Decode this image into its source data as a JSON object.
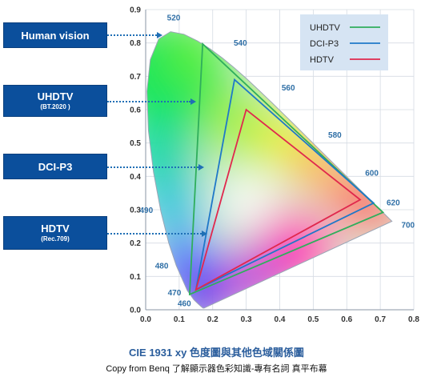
{
  "chart_data": {
    "type": "scatter",
    "title": "CIE 1931 xy 色度圖與其他色域關係圖",
    "xlim": [
      0.0,
      0.8
    ],
    "ylim": [
      0.0,
      0.9
    ],
    "xticks": [
      "0.0",
      "0.1",
      "0.2",
      "0.3",
      "0.4",
      "0.5",
      "0.6",
      "0.7",
      "0.8"
    ],
    "yticks": [
      "0.0",
      "0.1",
      "0.2",
      "0.3",
      "0.4",
      "0.5",
      "0.6",
      "0.7",
      "0.8",
      "0.9"
    ],
    "grid": true,
    "legend_position": "top-right",
    "spectral_locus": [
      [
        0.1741,
        0.005
      ],
      [
        0.1714,
        0.0051
      ],
      [
        0.1689,
        0.0069
      ],
      [
        0.1644,
        0.0109
      ],
      [
        0.1566,
        0.0177
      ],
      [
        0.144,
        0.0297
      ],
      [
        0.1241,
        0.0578
      ],
      [
        0.0913,
        0.1327
      ],
      [
        0.0687,
        0.2007
      ],
      [
        0.0454,
        0.295
      ],
      [
        0.0235,
        0.4127
      ],
      [
        0.0082,
        0.5384
      ],
      [
        0.0039,
        0.6548
      ],
      [
        0.0139,
        0.7502
      ],
      [
        0.0389,
        0.812
      ],
      [
        0.0743,
        0.8338
      ],
      [
        0.1142,
        0.8262
      ],
      [
        0.1547,
        0.8059
      ],
      [
        0.1929,
        0.7816
      ],
      [
        0.2296,
        0.7543
      ],
      [
        0.2658,
        0.7243
      ],
      [
        0.3016,
        0.6923
      ],
      [
        0.3373,
        0.6589
      ],
      [
        0.3731,
        0.6245
      ],
      [
        0.4087,
        0.5896
      ],
      [
        0.4441,
        0.5547
      ],
      [
        0.4788,
        0.5202
      ],
      [
        0.5125,
        0.4866
      ],
      [
        0.5448,
        0.4544
      ],
      [
        0.5752,
        0.4242
      ],
      [
        0.6029,
        0.3965
      ],
      [
        0.627,
        0.3725
      ],
      [
        0.6482,
        0.3514
      ],
      [
        0.6658,
        0.334
      ],
      [
        0.6801,
        0.3197
      ],
      [
        0.6915,
        0.3083
      ],
      [
        0.7006,
        0.2993
      ],
      [
        0.7079,
        0.292
      ],
      [
        0.714,
        0.2859
      ],
      [
        0.719,
        0.2809
      ],
      [
        0.723,
        0.277
      ],
      [
        0.726,
        0.274
      ],
      [
        0.7283,
        0.2717
      ],
      [
        0.73,
        0.27
      ],
      [
        0.7347,
        0.2653
      ]
    ],
    "wavelength_labels": [
      {
        "text": "460",
        "x": 0.144,
        "y": 0.03
      },
      {
        "text": "470",
        "x": 0.124,
        "y": 0.058
      },
      {
        "text": "480",
        "x": 0.091,
        "y": 0.133
      },
      {
        "text": "490",
        "x": 0.045,
        "y": 0.295
      },
      {
        "text": "520",
        "x": 0.074,
        "y": 0.834
      },
      {
        "text": "540",
        "x": 0.23,
        "y": 0.754
      },
      {
        "text": "560",
        "x": 0.373,
        "y": 0.624
      },
      {
        "text": "580",
        "x": 0.512,
        "y": 0.487
      },
      {
        "text": "600",
        "x": 0.627,
        "y": 0.373
      },
      {
        "text": "620",
        "x": 0.691,
        "y": 0.308
      },
      {
        "text": "700",
        "x": 0.735,
        "y": 0.265
      }
    ],
    "series": [
      {
        "name": "UHDTV",
        "color": "#2fae5c",
        "points": [
          [
            0.708,
            0.292
          ],
          [
            0.17,
            0.797
          ],
          [
            0.131,
            0.046
          ]
        ]
      },
      {
        "name": "DCI-P3",
        "color": "#1f78c8",
        "points": [
          [
            0.68,
            0.32
          ],
          [
            0.265,
            0.69
          ],
          [
            0.15,
            0.06
          ]
        ]
      },
      {
        "name": "HDTV",
        "color": "#e0284d",
        "points": [
          [
            0.64,
            0.33
          ],
          [
            0.3,
            0.6
          ],
          [
            0.15,
            0.06
          ]
        ]
      }
    ]
  },
  "callouts": [
    {
      "main": "Human vision",
      "sub": ""
    },
    {
      "main": "UHDTV",
      "sub": "(BT.2020 )"
    },
    {
      "main": "DCI-P3",
      "sub": ""
    },
    {
      "main": "HDTV",
      "sub": "(Rec.709)"
    }
  ],
  "colors": {
    "callout_bg": "#0b4f9c",
    "pointer": "#1f6fb5",
    "axis_text": "#333333",
    "legend_bg": "#d6e4f3"
  },
  "credit": "Copy from Benq 了解顯示器色彩知識-專有名詞 真平布幕"
}
